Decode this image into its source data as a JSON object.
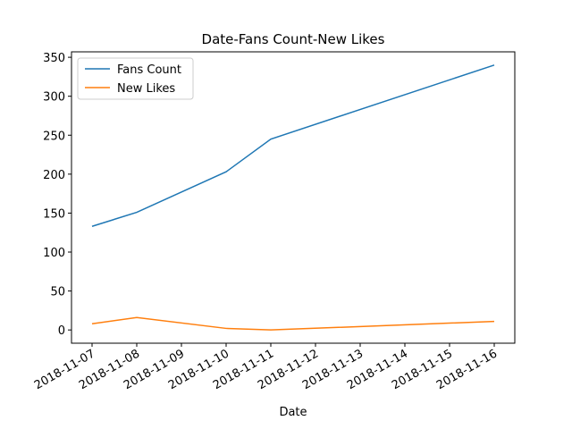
{
  "chart_data": {
    "type": "line",
    "title": "Date-Fans Count-New Likes",
    "x_label": "Date",
    "x": [
      "2018-11-07",
      "2018-11-08",
      "2018-11-10",
      "2018-11-11",
      "2018-11-16"
    ],
    "series": [
      {
        "name": "Fans Count",
        "color": "#1f77b4",
        "values": [
          133,
          151,
          203,
          245,
          340
        ]
      },
      {
        "name": "New Likes",
        "color": "#ff7f0e",
        "values": [
          8,
          16,
          2,
          0,
          11
        ]
      }
    ],
    "xticks": [
      "2018-11-07",
      "2018-11-08",
      "2018-11-09",
      "2018-11-10",
      "2018-11-11",
      "2018-11-12",
      "2018-11-13",
      "2018-11-14",
      "2018-11-15",
      "2018-11-16"
    ],
    "ylim": [
      -17,
      357
    ],
    "yticks": [
      0,
      50,
      100,
      150,
      200,
      250,
      300,
      350
    ],
    "legend": "upper left",
    "grid": false
  }
}
